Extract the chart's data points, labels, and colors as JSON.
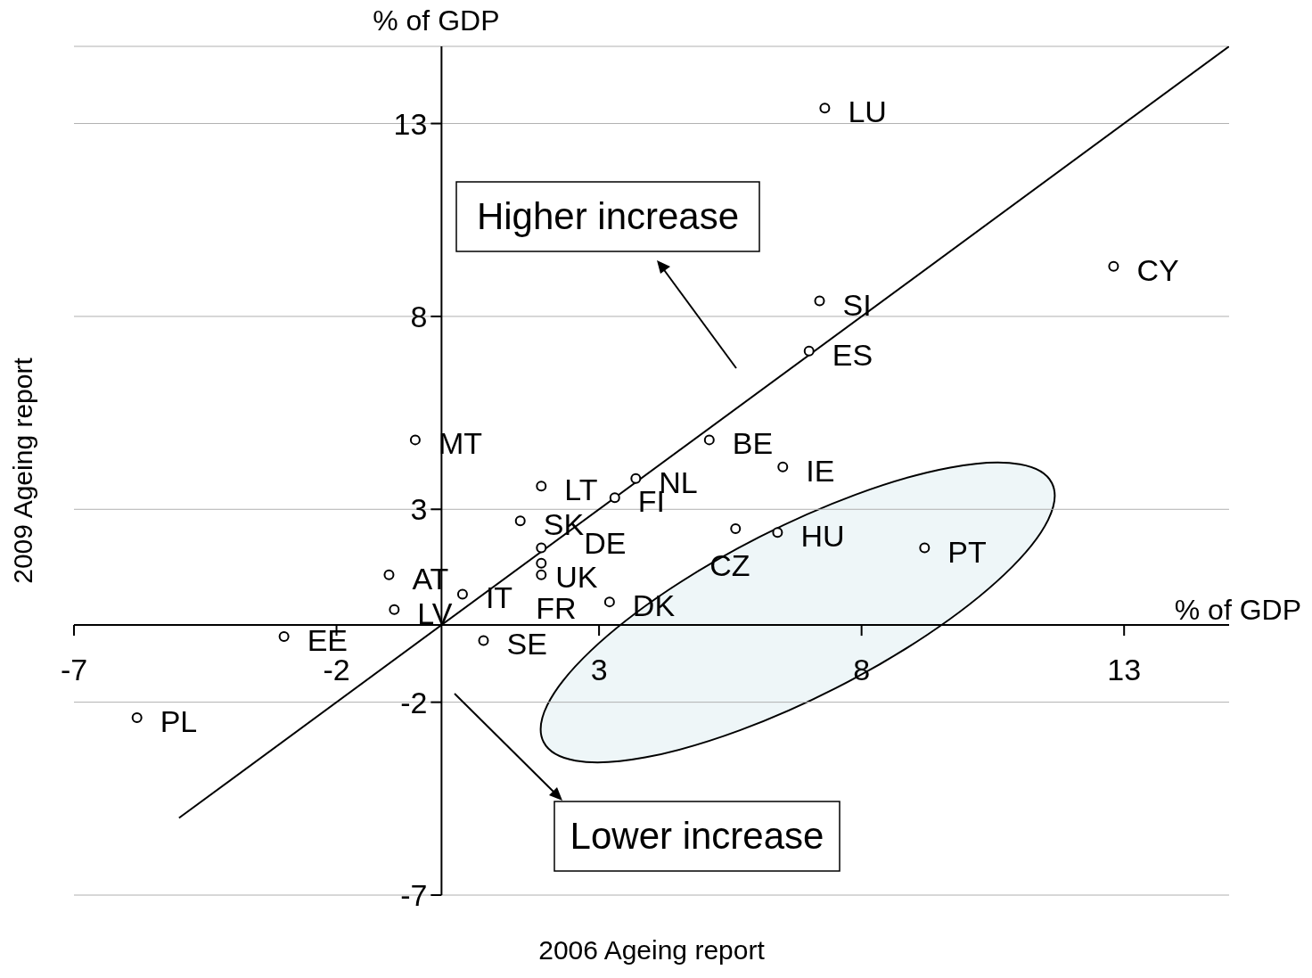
{
  "chart_data": {
    "type": "scatter",
    "xlabel": "2006 Ageing report",
    "ylabel": "2009 Ageing report",
    "xlim": [
      -7,
      15
    ],
    "ylim": [
      -7,
      15
    ],
    "xticks": [
      -7,
      -2,
      3,
      8,
      13
    ],
    "yticks": [
      -7,
      -2,
      3,
      8,
      13
    ],
    "grid": "y",
    "series": [
      {
        "marker": "circle",
        "color": "#000000",
        "x": [
          7.3,
          12.8,
          7.2,
          7.0,
          -0.5,
          5.1,
          6.5,
          1.9,
          3.7,
          3.3,
          1.5,
          1.9,
          1.9,
          1.9,
          5.6,
          6.4,
          9.2,
          3.2,
          -1.0,
          -0.9,
          0.4,
          -3.0,
          0.8,
          -5.8
        ],
        "values": [
          13.4,
          9.3,
          8.4,
          7.1,
          4.8,
          4.8,
          4.1,
          3.6,
          3.8,
          3.3,
          2.7,
          2.0,
          1.6,
          1.3,
          2.5,
          2.4,
          2.0,
          0.6,
          1.3,
          0.4,
          0.8,
          -0.3,
          -0.4,
          -2.4
        ]
      },
      {
        "type": "line",
        "color": "#000000",
        "x": [
          -5,
          15
        ],
        "values": [
          -5,
          15
        ]
      }
    ],
    "annotations": [
      "% of GDP",
      "% of GDP",
      "Higher increase",
      "Lower increase",
      {
        "text": "LU",
        "x": 7.3,
        "y": 13.4
      },
      {
        "text": "CY",
        "x": 12.8,
        "y": 9.3
      },
      {
        "text": "SI",
        "x": 7.2,
        "y": 8.4
      },
      {
        "text": "ES",
        "x": 7.0,
        "y": 7.1
      },
      {
        "text": "MT",
        "x": -0.5,
        "y": 4.8
      },
      {
        "text": "BE",
        "x": 5.1,
        "y": 4.8
      },
      {
        "text": "IE",
        "x": 6.5,
        "y": 4.1
      },
      {
        "text": "LT",
        "x": 1.9,
        "y": 3.6
      },
      {
        "text": "NL",
        "x": 3.7,
        "y": 3.8
      },
      {
        "text": "FI",
        "x": 3.3,
        "y": 3.3
      },
      {
        "text": "SK",
        "x": 1.5,
        "y": 2.7
      },
      {
        "text": "DE",
        "x": 1.9,
        "y": 2.0
      },
      {
        "text": "FR",
        "x": 1.9,
        "y": 1.6
      },
      {
        "text": "UK",
        "x": 1.9,
        "y": 1.3
      },
      {
        "text": "CZ",
        "x": 5.6,
        "y": 2.5
      },
      {
        "text": "HU",
        "x": 6.4,
        "y": 2.4
      },
      {
        "text": "PT",
        "x": 9.2,
        "y": 2.0
      },
      {
        "text": "DK",
        "x": 3.2,
        "y": 0.6
      },
      {
        "text": "AT",
        "x": -1.0,
        "y": 1.3
      },
      {
        "text": "LV",
        "x": -0.9,
        "y": 0.4
      },
      {
        "text": "IT",
        "x": 0.4,
        "y": 0.8
      },
      {
        "text": "EE",
        "x": -3.0,
        "y": -0.3
      },
      {
        "text": "SE",
        "x": 0.8,
        "y": -0.4
      },
      {
        "text": "PL",
        "x": -5.8,
        "y": -2.4
      }
    ]
  }
}
